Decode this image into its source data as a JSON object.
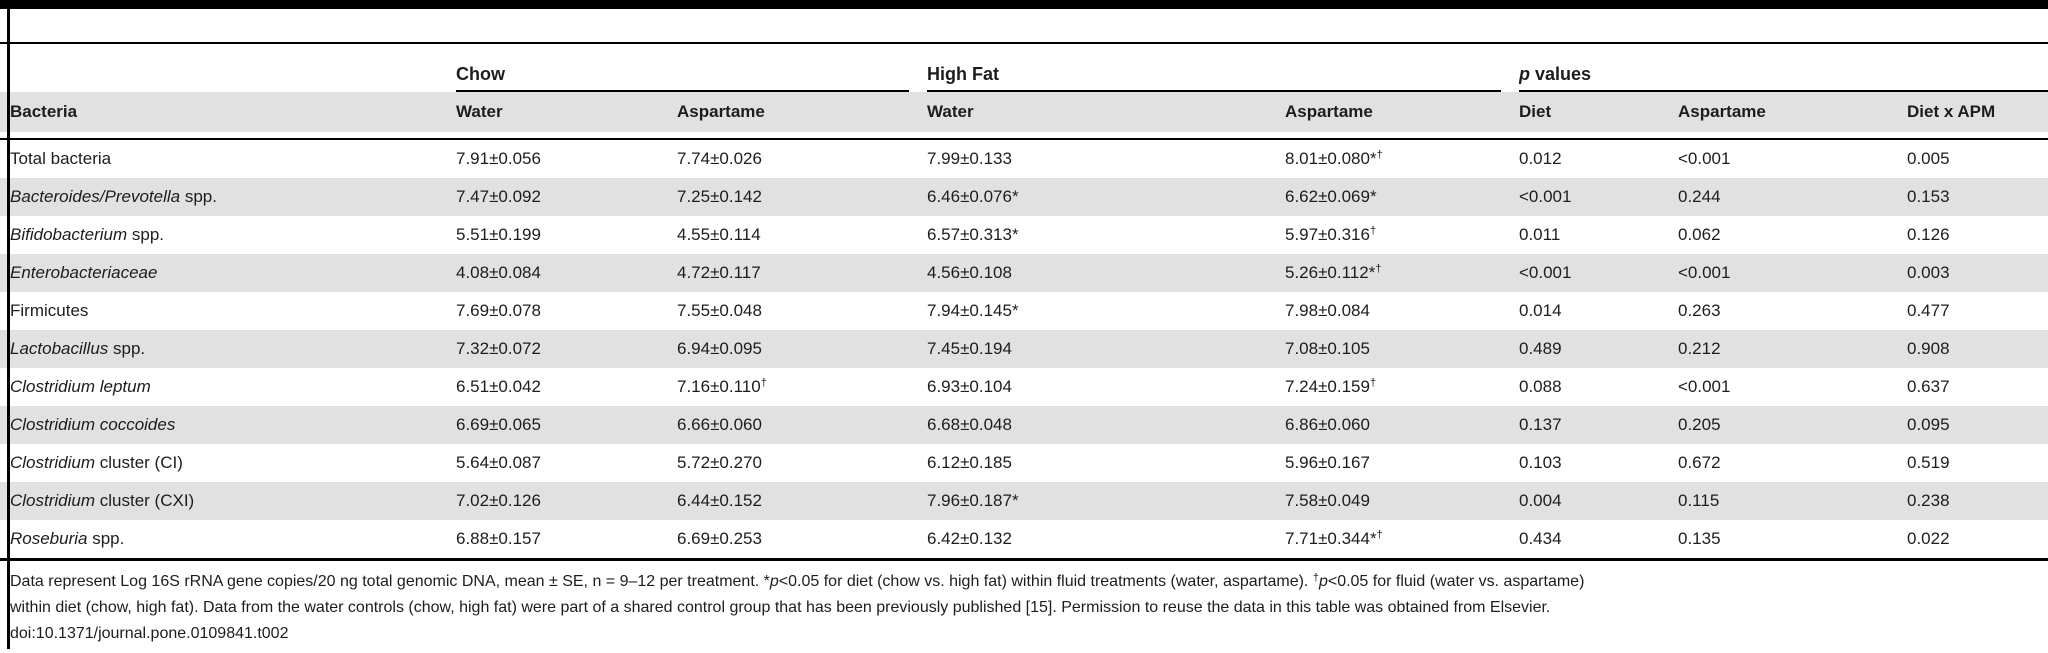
{
  "table": {
    "group_headers": {
      "chow": "Chow",
      "high_fat": "High Fat",
      "p_values_italic": "p",
      "p_values_rest": " values"
    },
    "sub_headers": [
      "Bacteria",
      "Water",
      "Aspartame",
      "Water",
      "Aspartame",
      "Diet",
      "Aspartame",
      "Diet x APM"
    ],
    "rows": [
      {
        "name_italic": "",
        "name_rest": "Total bacteria",
        "cells": [
          {
            "t": "7.91±0.056"
          },
          {
            "t": "7.74±0.026"
          },
          {
            "t": "7.99±0.133"
          },
          {
            "t": "8.01±0.080*",
            "s": "†"
          },
          {
            "t": "0.012"
          },
          {
            "t": "<0.001"
          },
          {
            "t": "0.005"
          }
        ]
      },
      {
        "name_italic": "Bacteroides/Prevotella",
        "name_rest": " spp.",
        "cells": [
          {
            "t": "7.47±0.092"
          },
          {
            "t": "7.25±0.142"
          },
          {
            "t": "6.46±0.076*"
          },
          {
            "t": "6.62±0.069*"
          },
          {
            "t": "<0.001"
          },
          {
            "t": "0.244"
          },
          {
            "t": "0.153"
          }
        ]
      },
      {
        "name_italic": "Bifidobacterium",
        "name_rest": " spp.",
        "cells": [
          {
            "t": "5.51±0.199"
          },
          {
            "t": "4.55±0.114"
          },
          {
            "t": "6.57±0.313*"
          },
          {
            "t": "5.97±0.316",
            "s": "†"
          },
          {
            "t": "0.011"
          },
          {
            "t": "0.062"
          },
          {
            "t": "0.126"
          }
        ]
      },
      {
        "name_italic": "Enterobacteriaceae",
        "name_rest": "",
        "cells": [
          {
            "t": "4.08±0.084"
          },
          {
            "t": "4.72±0.117"
          },
          {
            "t": "4.56±0.108"
          },
          {
            "t": "5.26±0.112*",
            "s": "†"
          },
          {
            "t": "<0.001"
          },
          {
            "t": "<0.001"
          },
          {
            "t": "0.003"
          }
        ]
      },
      {
        "name_italic": "",
        "name_rest": "Firmicutes",
        "cells": [
          {
            "t": "7.69±0.078"
          },
          {
            "t": "7.55±0.048"
          },
          {
            "t": "7.94±0.145*"
          },
          {
            "t": "7.98±0.084"
          },
          {
            "t": "0.014"
          },
          {
            "t": "0.263"
          },
          {
            "t": "0.477"
          }
        ]
      },
      {
        "name_italic": "Lactobacillus",
        "name_rest": " spp.",
        "cells": [
          {
            "t": "7.32±0.072"
          },
          {
            "t": "6.94±0.095"
          },
          {
            "t": "7.45±0.194"
          },
          {
            "t": "7.08±0.105"
          },
          {
            "t": "0.489"
          },
          {
            "t": "0.212"
          },
          {
            "t": "0.908"
          }
        ]
      },
      {
        "name_italic": "Clostridium leptum",
        "name_rest": "",
        "cells": [
          {
            "t": "6.51±0.042"
          },
          {
            "t": "7.16±0.110",
            "s": "†"
          },
          {
            "t": "6.93±0.104"
          },
          {
            "t": "7.24±0.159",
            "s": "†"
          },
          {
            "t": "0.088"
          },
          {
            "t": "<0.001"
          },
          {
            "t": "0.637"
          }
        ]
      },
      {
        "name_italic": "Clostridium coccoides",
        "name_rest": "",
        "cells": [
          {
            "t": "6.69±0.065"
          },
          {
            "t": "6.66±0.060"
          },
          {
            "t": "6.68±0.048"
          },
          {
            "t": "6.86±0.060"
          },
          {
            "t": "0.137"
          },
          {
            "t": "0.205"
          },
          {
            "t": "0.095"
          }
        ]
      },
      {
        "name_italic": "Clostridium",
        "name_rest": " cluster (CI)",
        "cells": [
          {
            "t": "5.64±0.087"
          },
          {
            "t": "5.72±0.270"
          },
          {
            "t": "6.12±0.185"
          },
          {
            "t": "5.96±0.167"
          },
          {
            "t": "0.103"
          },
          {
            "t": "0.672"
          },
          {
            "t": "0.519"
          }
        ]
      },
      {
        "name_italic": "Clostridium",
        "name_rest": " cluster (CXI)",
        "cells": [
          {
            "t": "7.02±0.126"
          },
          {
            "t": "6.44±0.152"
          },
          {
            "t": "7.96±0.187*"
          },
          {
            "t": "7.58±0.049"
          },
          {
            "t": "0.004"
          },
          {
            "t": "0.115"
          },
          {
            "t": "0.238"
          }
        ]
      },
      {
        "name_italic": "Roseburia",
        "name_rest": " spp.",
        "cells": [
          {
            "t": "6.88±0.157"
          },
          {
            "t": "6.69±0.253"
          },
          {
            "t": "6.42±0.132"
          },
          {
            "t": "7.71±0.344*",
            "s": "†"
          },
          {
            "t": "0.434"
          },
          {
            "t": "0.135"
          },
          {
            "t": "0.022"
          }
        ]
      }
    ]
  },
  "footnote": {
    "lines": [
      [
        {
          "t": "Data represent Log 16S rRNA gene copies/20 ng total genomic DNA, mean ± SE, n = 9–12 per treatment. *",
          "y": "n"
        },
        {
          "t": "p",
          "y": "i"
        },
        {
          "t": "<0.05 for diet (chow vs. high fat) within fluid treatments (water, aspartame). ",
          "y": "n"
        },
        {
          "t": "†",
          "y": "s"
        },
        {
          "t": "p",
          "y": "i"
        },
        {
          "t": "<0.05 for fluid (water vs. aspartame)",
          "y": "n"
        }
      ],
      [
        {
          "t": "within diet (chow, high fat). Data from the water controls (chow, high fat) were part of a shared control group that has been previously published [15]. Permission to reuse the data in this table was obtained from Elsevier.",
          "y": "n"
        }
      ]
    ],
    "doi": "doi:10.1371/journal.pone.0109841.t002"
  }
}
